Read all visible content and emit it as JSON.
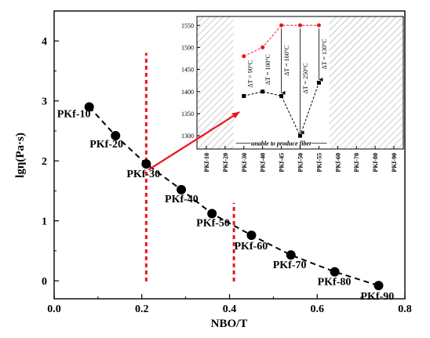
{
  "chart_data": [
    {
      "type": "scatter",
      "xlabel": "NBO/T",
      "ylabel": "lgη(Pa·s)",
      "xlim": [
        0.0,
        0.8
      ],
      "ylim": [
        -0.3,
        4.5
      ],
      "xticks": [
        0.0,
        0.2,
        0.4,
        0.6,
        0.8
      ],
      "xtick_labels": [
        "0.0",
        "0.2",
        "0.4",
        "0.6",
        "0.8"
      ],
      "yticks": [
        0,
        1,
        2,
        3,
        4
      ],
      "ytick_labels": [
        "0",
        "1",
        "2",
        "3",
        "4"
      ],
      "series": [
        {
          "line_style": "dashed",
          "points": [
            {
              "x": 0.08,
              "y": 2.9,
              "label": "PKf-10"
            },
            {
              "x": 0.14,
              "y": 2.42,
              "label": "PKf-20"
            },
            {
              "x": 0.21,
              "y": 1.95,
              "label": "PKf-30"
            },
            {
              "x": 0.29,
              "y": 1.52,
              "label": "PKf-40"
            },
            {
              "x": 0.36,
              "y": 1.12,
              "label": "PKf-50"
            },
            {
              "x": 0.45,
              "y": 0.76,
              "label": "PKf-60"
            },
            {
              "x": 0.54,
              "y": 0.43,
              "label": "PKf-70"
            },
            {
              "x": 0.64,
              "y": 0.15,
              "label": "PKf-80"
            },
            {
              "x": 0.74,
              "y": -0.08,
              "label": "PKf-90"
            }
          ]
        }
      ],
      "vertical_markers": [
        {
          "x": 0.21,
          "y_from": -0.01,
          "y_to": 3.8,
          "color": "#e8141c",
          "style": "dotted"
        },
        {
          "x": 0.41,
          "y_from": -0.01,
          "y_to": 1.3,
          "color": "#e8141c",
          "style": "dotted"
        }
      ],
      "arrow": {
        "from": {
          "x": 0.215,
          "y": 1.85
        },
        "color": "#e8141c"
      },
      "grid": false,
      "legend": "none"
    },
    {
      "type": "line",
      "inset": true,
      "categories": [
        "PKf-10",
        "PKf-20",
        "PKf-30",
        "PKf-40",
        "PKf-45",
        "PKf-50",
        "PKf-55",
        "PKf-60",
        "PKf-70",
        "PKf-80",
        "PKf-90"
      ],
      "ylim": [
        1270,
        1570
      ],
      "yticks": [
        1300,
        1350,
        1400,
        1450,
        1500,
        1550
      ],
      "ytick_labels": [
        "1300",
        "1350",
        "1400",
        "1450",
        "1500",
        "1550"
      ],
      "series": [
        {
          "color": "#e8141c",
          "marker": "circle",
          "style": "dotted",
          "points": [
            {
              "cat": 2,
              "y": 1480
            },
            {
              "cat": 3,
              "y": 1500
            },
            {
              "cat": 4,
              "y": 1550
            },
            {
              "cat": 5,
              "y": 1550
            },
            {
              "cat": 6,
              "y": 1550
            }
          ]
        },
        {
          "color": "#000000",
          "marker": "square",
          "style": "dotted",
          "points": [
            {
              "cat": 2,
              "y": 1390
            },
            {
              "cat": 3,
              "y": 1400
            },
            {
              "cat": 4,
              "y": 1390
            },
            {
              "cat": 5,
              "y": 1300
            },
            {
              "cat": 6,
              "y": 1420
            }
          ]
        }
      ],
      "hatched_regions": [
        {
          "from_cat": -0.5,
          "to_cat": 1.45
        },
        {
          "from_cat": 6.55,
          "to_cat": 10.5
        }
      ],
      "annotations": [
        {
          "text": "ΔT = 90°C",
          "cat": 2.45,
          "y": 1440
        },
        {
          "text": "ΔT = 100°C",
          "cat": 3.4,
          "y": 1450
        },
        {
          "text": "ΔT = 160°C",
          "cat": 4.4,
          "y": 1470
        },
        {
          "text": "ΔT = 250°C",
          "cat": 5.4,
          "y": 1430
        },
        {
          "text": "ΔT = 130°C",
          "cat": 6.4,
          "y": 1485
        }
      ],
      "dt_arrows": [
        {
          "cat": 4,
          "y_from": 1550,
          "y_to": 1390
        },
        {
          "cat": 5,
          "y_from": 1550,
          "y_to": 1300
        },
        {
          "cat": 6,
          "y_from": 1550,
          "y_to": 1420
        }
      ],
      "note": "unable to produce fiber",
      "grid": false,
      "legend": "none"
    }
  ]
}
